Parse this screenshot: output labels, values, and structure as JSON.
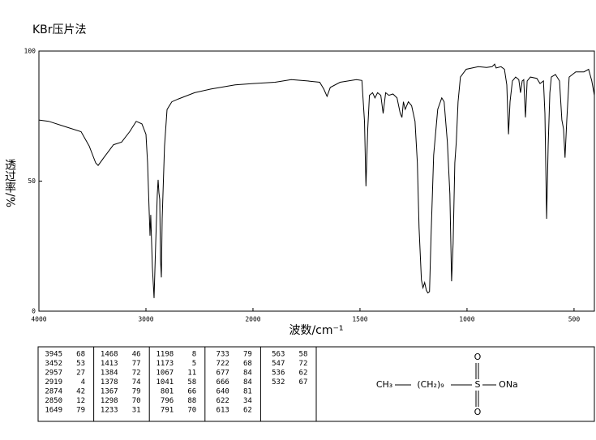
{
  "chart_data": {
    "type": "line",
    "title": "KBr压片法",
    "xlabel": "波数/cm⁻¹",
    "ylabel": "透过率/%",
    "x": [
      4000,
      3909,
      3758,
      3606,
      3530,
      3470,
      3447,
      3394,
      3303,
      3227,
      3152,
      3091,
      3038,
      3000,
      2985,
      2970,
      2962,
      2955,
      2940,
      2924,
      2909,
      2894,
      2886,
      2879,
      2871,
      2864,
      2856,
      2848,
      2826,
      2803,
      2758,
      2697,
      2545,
      2394,
      2167,
      2000,
      1897,
      1821,
      1745,
      1688,
      1669,
      1654,
      1639,
      1593,
      1517,
      1491,
      1479,
      1472,
      1464,
      1456,
      1441,
      1430,
      1418,
      1403,
      1392,
      1380,
      1365,
      1346,
      1327,
      1312,
      1304,
      1297,
      1289,
      1274,
      1259,
      1243,
      1232,
      1224,
      1213,
      1206,
      1198,
      1190,
      1183,
      1175,
      1168,
      1156,
      1137,
      1118,
      1107,
      1092,
      1080,
      1072,
      1065,
      1057,
      1050,
      1042,
      1031,
      1004,
      947,
      909,
      883,
      871,
      864,
      841,
      825,
      814,
      806,
      799,
      788,
      773,
      758,
      750,
      742,
      735,
      727,
      719,
      704,
      674,
      659,
      643,
      636,
      628,
      621,
      613,
      606,
      587,
      568,
      557,
      549,
      542,
      534,
      523,
      492,
      473,
      454,
      432,
      417,
      405
    ],
    "values": [
      73.5,
      73,
      71,
      69,
      63.5,
      57,
      56,
      59,
      64,
      65,
      69,
      73,
      72,
      68,
      57,
      39,
      29,
      37,
      17,
      5,
      26,
      45,
      50.5,
      45.5,
      43,
      20,
      13,
      35.5,
      63.5,
      77.5,
      80.5,
      81.6,
      84,
      85.4,
      87,
      87.5,
      88,
      89,
      88.5,
      88,
      85.4,
      82.6,
      86,
      88,
      89,
      88.7,
      73,
      48,
      70,
      83,
      84,
      82,
      84,
      83,
      76,
      84,
      83,
      83.5,
      82,
      76,
      74.5,
      80.5,
      77.6,
      80.5,
      79,
      73,
      57,
      32,
      12,
      9,
      11,
      8,
      7,
      7.5,
      29,
      60,
      77.6,
      82,
      80.5,
      65,
      45,
      11.5,
      26,
      57,
      65,
      80.5,
      90,
      93,
      94,
      93.7,
      94,
      95,
      93.5,
      94,
      93,
      87,
      68,
      80.5,
      88.5,
      90,
      89,
      84,
      88.5,
      89,
      74.5,
      88.5,
      90,
      89.5,
      87.5,
      88.5,
      76,
      35.5,
      63.5,
      84,
      90,
      91,
      88.5,
      73.5,
      70,
      59,
      73,
      90,
      92,
      92,
      92,
      93,
      88.5,
      83
    ],
    "color": "#000000",
    "xlim": [
      4000,
      405
    ],
    "xscale": {
      "break": 2000,
      "factor": 2
    },
    "xticks": [
      4000,
      3000,
      2000,
      1500,
      1000,
      500
    ],
    "ylim": [
      0,
      100
    ],
    "yticks": [
      0,
      50,
      100
    ]
  },
  "peak_table": [
    [
      3945,
      68
    ],
    [
      3452,
      53
    ],
    [
      2957,
      27
    ],
    [
      2919,
      4
    ],
    [
      2874,
      42
    ],
    [
      2850,
      12
    ],
    [
      1649,
      79
    ],
    [
      1468,
      46
    ],
    [
      1413,
      77
    ],
    [
      1384,
      72
    ],
    [
      1378,
      74
    ],
    [
      1367,
      79
    ],
    [
      1298,
      70
    ],
    [
      1233,
      31
    ],
    [
      1198,
      8
    ],
    [
      1173,
      5
    ],
    [
      1067,
      11
    ],
    [
      1041,
      58
    ],
    [
      801,
      66
    ],
    [
      796,
      88
    ],
    [
      791,
      70
    ],
    [
      733,
      79
    ],
    [
      722,
      68
    ],
    [
      677,
      84
    ],
    [
      666,
      84
    ],
    [
      640,
      81
    ],
    [
      622,
      34
    ],
    [
      613,
      62
    ],
    [
      563,
      58
    ],
    [
      547,
      72
    ],
    [
      536,
      62
    ],
    [
      532,
      67
    ]
  ],
  "structure": {
    "chain": [
      "CH₃",
      "(CH₂)₉",
      "S",
      "ONa"
    ],
    "oxygen_top": "O",
    "oxygen_bottom": "O"
  }
}
